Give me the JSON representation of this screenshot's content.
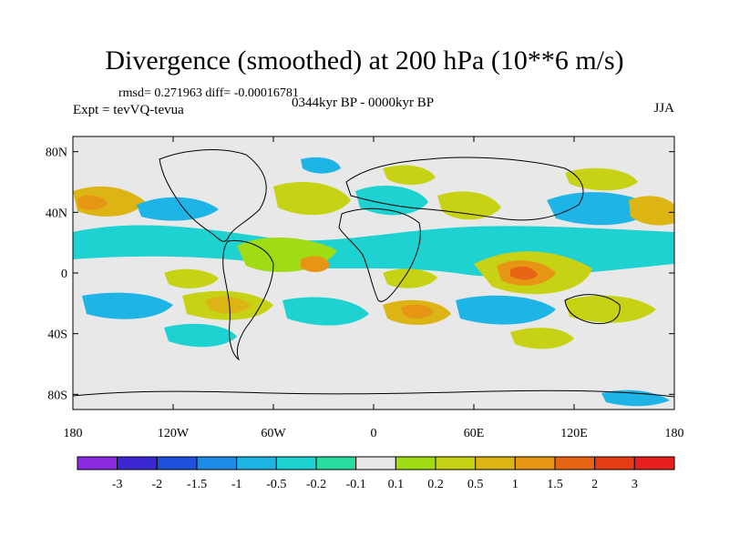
{
  "title": "Divergence (smoothed) at 200 hPa (10**6 m/s)",
  "stats": "rmsd= 0.271963 diff= -0.00016781",
  "experiment": "Expt = tevVQ-tevua",
  "period": "0344kyr BP - 0000kyr BP",
  "season": "JJA",
  "map": {
    "projection": "cylindrical equidistant",
    "lon_range": [
      -180,
      180
    ],
    "lat_range": [
      -90,
      90
    ],
    "background_color": "#e8e8e8",
    "y_ticks": [
      "80N",
      "40N",
      "0",
      "40S",
      "80S"
    ],
    "x_ticks": [
      "180",
      "120W",
      "60W",
      "0",
      "60E",
      "120E",
      "180"
    ]
  },
  "colorbar": {
    "colors": [
      "#8a2be2",
      "#3c28d2",
      "#1e50dc",
      "#1e8ce6",
      "#1eb4e6",
      "#1ed2d2",
      "#28dca0",
      "#e8e8e8",
      "#a0dc14",
      "#c8d214",
      "#dcb414",
      "#e69614",
      "#e66414",
      "#e63c14",
      "#e61e1e"
    ],
    "labels": [
      "-3",
      "-2",
      "-1.5",
      "-1",
      "-0.5",
      "-0.2",
      "-0.1",
      "0.1",
      "0.2",
      "0.5",
      "1",
      "1.5",
      "2",
      "3"
    ]
  }
}
